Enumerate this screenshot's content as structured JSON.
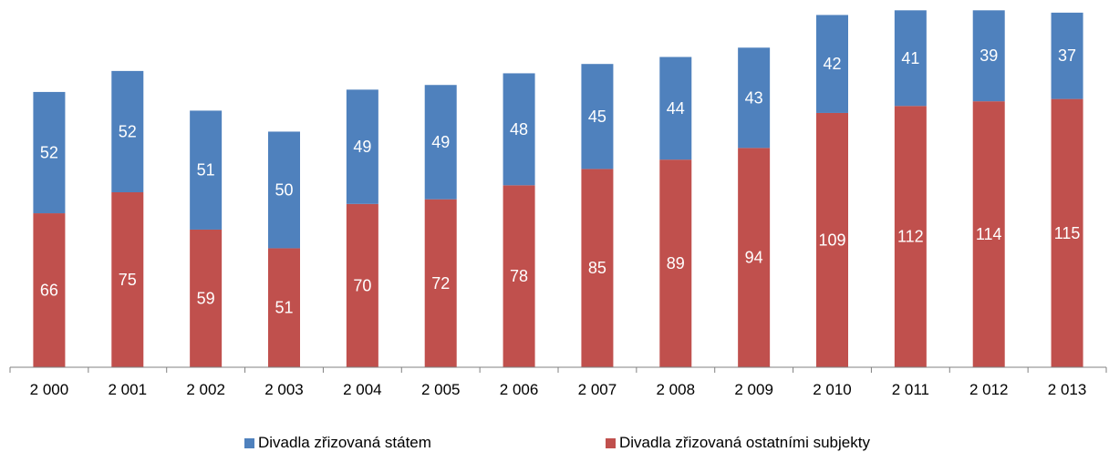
{
  "chart_data": {
    "type": "bar",
    "stacked": true,
    "categories": [
      "2 000",
      "2 001",
      "2 002",
      "2 003",
      "2 004",
      "2 005",
      "2 006",
      "2 007",
      "2 008",
      "2 009",
      "2 010",
      "2 011",
      "2 012",
      "2 013"
    ],
    "series": [
      {
        "name": "Divadla zřizovaná ostatními subjekty",
        "color": "#c0504d",
        "values": [
          66,
          75,
          59,
          51,
          70,
          72,
          78,
          85,
          89,
          94,
          109,
          112,
          114,
          115
        ]
      },
      {
        "name": "Divadla zřizovaná státem",
        "color": "#4f81bd",
        "values": [
          52,
          52,
          51,
          50,
          49,
          49,
          48,
          45,
          44,
          43,
          42,
          41,
          39,
          37
        ]
      }
    ],
    "ylim": [
      0,
      155
    ],
    "grid": false,
    "data_labels": true,
    "legend_position": "bottom"
  },
  "legend": {
    "items": [
      {
        "label": "Divadla zřizovaná státem",
        "color": "#4f81bd"
      },
      {
        "label": "Divadla zřizovaná ostatními subjekty",
        "color": "#c0504d"
      }
    ]
  }
}
